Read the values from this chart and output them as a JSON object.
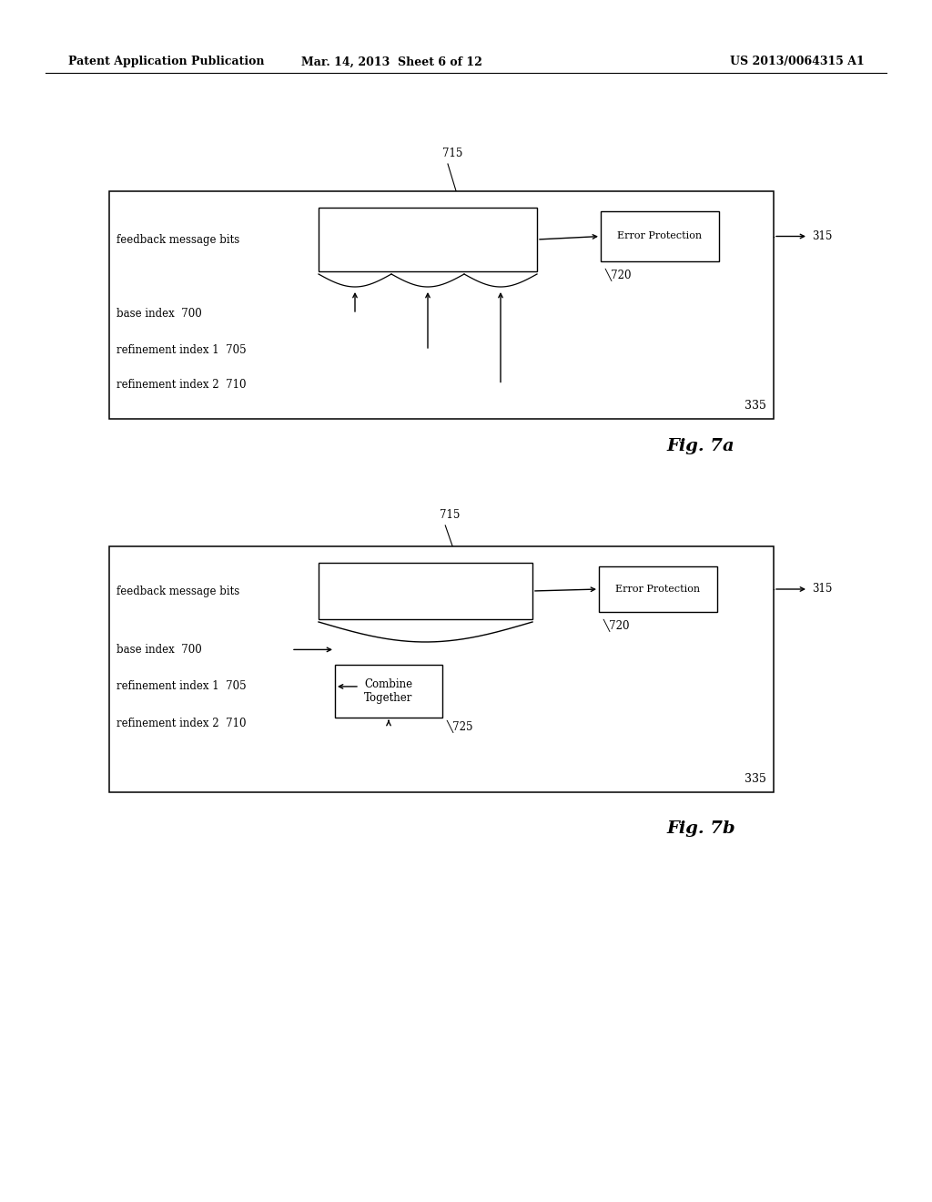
{
  "bg_color": "#ffffff",
  "header_left": "Patent Application Publication",
  "header_mid": "Mar. 14, 2013  Sheet 6 of 12",
  "header_right": "US 2013/0064315 A1",
  "fig7a": {
    "label_335": "335",
    "label_315": "315",
    "label_715": "715",
    "label_720": "720",
    "feedback_text": "feedback message bits",
    "base_index_text": "base index  700",
    "refinement1_text": "refinement index 1  705",
    "refinement2_text": "refinement index 2  710",
    "error_prot_text": "Error Protection"
  },
  "fig7b": {
    "label_335": "335",
    "label_315": "315",
    "label_715": "715",
    "label_720": "720",
    "label_725": "725",
    "feedback_text": "feedback message bits",
    "base_index_text": "base index  700",
    "refinement1_text": "refinement index 1  705",
    "refinement2_text": "refinement index 2  710",
    "error_prot_text": "Error Protection",
    "combine_text": "Combine\nTogether"
  }
}
